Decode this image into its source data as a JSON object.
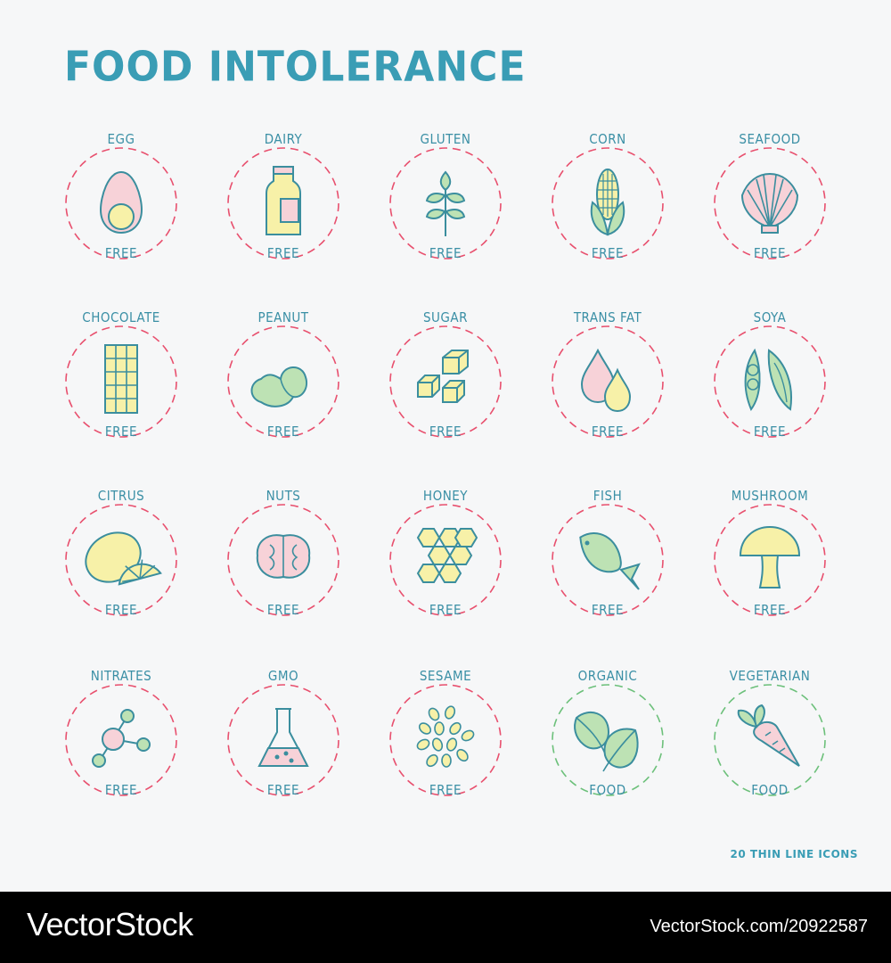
{
  "title": "FOOD INTOLERANCE",
  "footnote": "20 THIN LINE ICONS",
  "watermark": {
    "brand": "VectorStock",
    "id": "VectorStock.com/20922587"
  },
  "colors": {
    "accent": "#3a9db5",
    "ring_red": "#e8506e",
    "ring_green": "#6cc07a"
  },
  "badges": [
    {
      "top": "EGG",
      "bottom": "FREE",
      "icon": "egg-icon",
      "ring": "red"
    },
    {
      "top": "DAIRY",
      "bottom": "FREE",
      "icon": "milk-bottle-icon",
      "ring": "red"
    },
    {
      "top": "GLUTEN",
      "bottom": "FREE",
      "icon": "wheat-icon",
      "ring": "red"
    },
    {
      "top": "CORN",
      "bottom": "FREE",
      "icon": "corn-icon",
      "ring": "red"
    },
    {
      "top": "SEAFOOD",
      "bottom": "FREE",
      "icon": "shell-icon",
      "ring": "red"
    },
    {
      "top": "CHOCOLATE",
      "bottom": "FREE",
      "icon": "chocolate-bar-icon",
      "ring": "red"
    },
    {
      "top": "PEANUT",
      "bottom": "FREE",
      "icon": "peanut-icon",
      "ring": "red"
    },
    {
      "top": "SUGAR",
      "bottom": "FREE",
      "icon": "sugar-cubes-icon",
      "ring": "red"
    },
    {
      "top": "TRANS FAT",
      "bottom": "FREE",
      "icon": "oil-drops-icon",
      "ring": "red"
    },
    {
      "top": "SOYA",
      "bottom": "FREE",
      "icon": "soy-pod-icon",
      "ring": "red"
    },
    {
      "top": "CITRUS",
      "bottom": "FREE",
      "icon": "lemon-icon",
      "ring": "red"
    },
    {
      "top": "NUTS",
      "bottom": "FREE",
      "icon": "walnut-icon",
      "ring": "red"
    },
    {
      "top": "HONEY",
      "bottom": "FREE",
      "icon": "honeycomb-icon",
      "ring": "red"
    },
    {
      "top": "FISH",
      "bottom": "FREE",
      "icon": "fish-icon",
      "ring": "red"
    },
    {
      "top": "MUSHROOM",
      "bottom": "FREE",
      "icon": "mushroom-icon",
      "ring": "red"
    },
    {
      "top": "NITRATES",
      "bottom": "FREE",
      "icon": "molecule-icon",
      "ring": "red"
    },
    {
      "top": "GMO",
      "bottom": "FREE",
      "icon": "flask-icon",
      "ring": "red"
    },
    {
      "top": "SESAME",
      "bottom": "FREE",
      "icon": "seeds-icon",
      "ring": "red"
    },
    {
      "top": "ORGANIC",
      "bottom": "FOOD",
      "icon": "leaves-icon",
      "ring": "green"
    },
    {
      "top": "VEGETARIAN",
      "bottom": "FOOD",
      "icon": "carrot-icon",
      "ring": "green"
    }
  ]
}
